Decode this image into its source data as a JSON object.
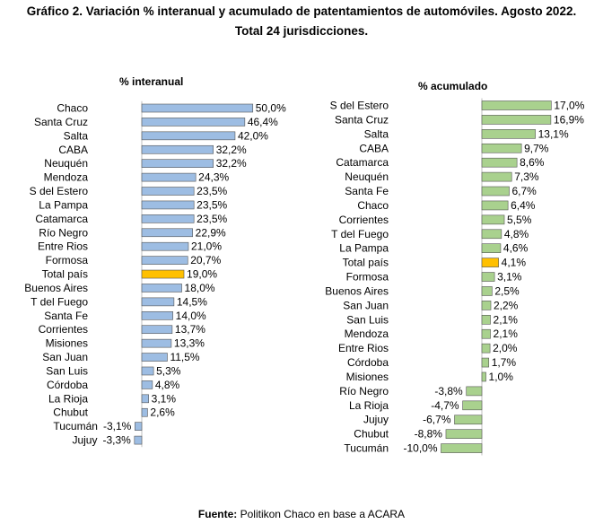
{
  "title_line1": "Gráfico 2. Variación % interanual y acumulado de patentamientos de automóviles. Agosto 2022.",
  "title_line2": "Total 24 jurisdicciones.",
  "source_label": "Fuente:",
  "source_text": "Politikon Chaco en base a ACARA",
  "colors": {
    "blue": "#9dbde3",
    "green": "#a9d18e",
    "highlight": "#ffc000",
    "border": "#555555"
  },
  "chart_data": [
    {
      "type": "bar",
      "orientation": "horizontal",
      "title": "% interanual",
      "value_suffix": "%",
      "highlight": "Total país",
      "categories": [
        "Chaco",
        "Santa Cruz",
        "Salta",
        "CABA",
        "Neuquén",
        "Mendoza",
        "S del Estero",
        "La Pampa",
        "Catamarca",
        "Río Negro",
        "Entre Rios",
        "Formosa",
        "Total país",
        "Buenos Aires",
        "T del Fuego",
        "Santa Fe",
        "Corrientes",
        "Misiones",
        "San Juan",
        "San Luis",
        "Córdoba",
        "La Rioja",
        "Chubut",
        "Tucumán",
        "Jujuy"
      ],
      "values": [
        50.0,
        46.4,
        42.0,
        32.2,
        32.2,
        24.3,
        23.5,
        23.5,
        23.5,
        22.9,
        21.0,
        20.7,
        19.0,
        18.0,
        14.5,
        14.0,
        13.7,
        13.3,
        11.5,
        5.3,
        4.8,
        3.1,
        2.6,
        -3.1,
        -3.3
      ],
      "labels": [
        "50,0%",
        "46,4%",
        "42,0%",
        "32,2%",
        "32,2%",
        "24,3%",
        "23,5%",
        "23,5%",
        "23,5%",
        "22,9%",
        "21,0%",
        "20,7%",
        "19,0%",
        "18,0%",
        "14,5%",
        "14,0%",
        "13,7%",
        "13,3%",
        "11,5%",
        "5,3%",
        "4,8%",
        "3,1%",
        "2,6%",
        "-3,1%",
        "-3,3%"
      ]
    },
    {
      "type": "bar",
      "orientation": "horizontal",
      "title": "% acumulado",
      "value_suffix": "%",
      "highlight": "Total país",
      "categories": [
        "S del Estero",
        "Santa Cruz",
        "Salta",
        "CABA",
        "Catamarca",
        "Neuquén",
        "Santa Fe",
        "Chaco",
        "Corrientes",
        "T del Fuego",
        "La Pampa",
        "Total país",
        "Formosa",
        "Buenos Aires",
        "San Juan",
        "San Luis",
        "Mendoza",
        "Entre Rios",
        "Córdoba",
        "Misiones",
        "Río Negro",
        "La Rioja",
        "Jujuy",
        "Chubut",
        "Tucumán"
      ],
      "values": [
        17.0,
        16.9,
        13.1,
        9.7,
        8.6,
        7.3,
        6.7,
        6.4,
        5.5,
        4.8,
        4.6,
        4.1,
        3.1,
        2.5,
        2.2,
        2.1,
        2.1,
        2.0,
        1.7,
        1.0,
        -3.8,
        -4.7,
        -6.7,
        -8.8,
        -10.0
      ],
      "labels": [
        "17,0%",
        "16,9%",
        "13,1%",
        "9,7%",
        "8,6%",
        "7,3%",
        "6,7%",
        "6,4%",
        "5,5%",
        "4,8%",
        "4,6%",
        "4,1%",
        "3,1%",
        "2,5%",
        "2,2%",
        "2,1%",
        "2,1%",
        "2,0%",
        "1,7%",
        "1,0%",
        "-3,8%",
        "-4,7%",
        "-6,7%",
        "-8,8%",
        "-10,0%"
      ]
    }
  ]
}
